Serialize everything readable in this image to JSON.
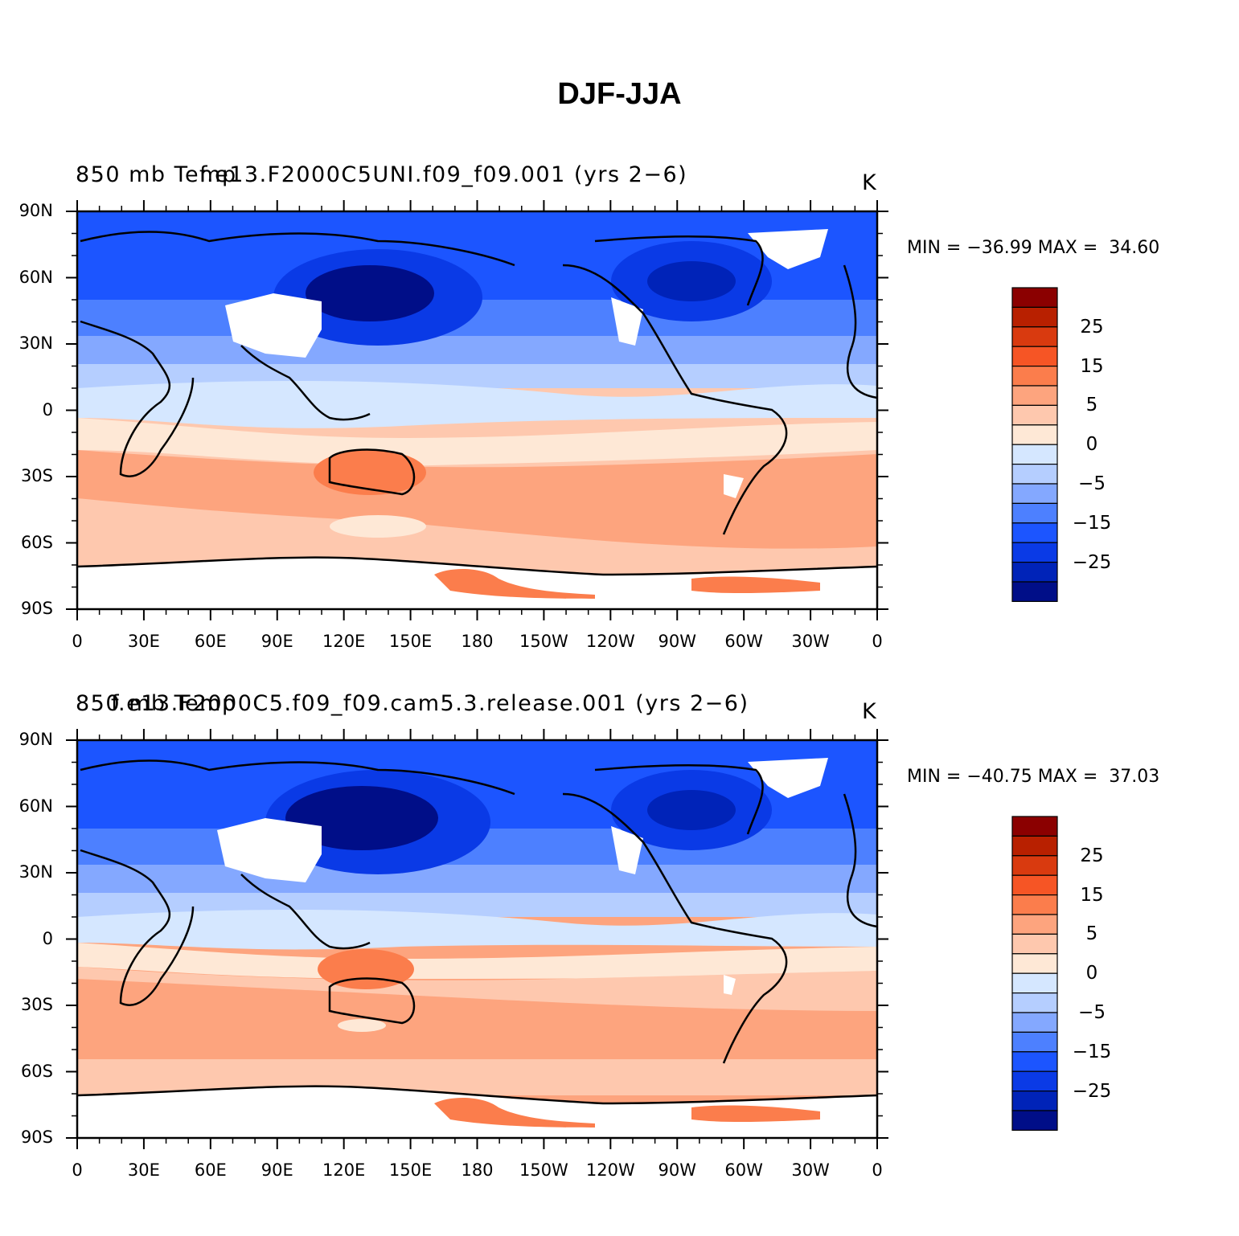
{
  "title": "DJF-JJA",
  "lon_ticks": [
    "0",
    "30E",
    "60E",
    "90E",
    "120E",
    "150E",
    "180",
    "150W",
    "120W",
    "90W",
    "60W",
    "30W",
    "0"
  ],
  "lat_ticks": [
    "90N",
    "60N",
    "30N",
    "0",
    "30S",
    "60S",
    "90S"
  ],
  "colorbar": {
    "colors": [
      "#8b0000",
      "#b82000",
      "#d93a0f",
      "#f65525",
      "#fb7d4c",
      "#fda47e",
      "#fec8ae",
      "#fee8d6",
      "#d5e7ff",
      "#b5ceff",
      "#84a8ff",
      "#4d80ff",
      "#1c55ff",
      "#0a3ae6",
      "#0023b8",
      "#000e88"
    ],
    "labels": [
      "25",
      "15",
      "5",
      "0",
      "−5",
      "−15",
      "−25"
    ]
  },
  "panels": [
    {
      "left_title": "850 mb Temp",
      "center_title": "f.e13.F2000C5UNI.f09_f09.001 (yrs 2−6)",
      "units": "K",
      "minmax": "MIN = −36.99 MAX =  34.60"
    },
    {
      "left_title": "850 mb Temp",
      "center_title": "f.e13.F2000C5.f09_f09.cam5.3.release.001 (yrs 2−6)",
      "units": "K",
      "minmax": "MIN = −40.75 MAX =  37.03"
    }
  ]
}
